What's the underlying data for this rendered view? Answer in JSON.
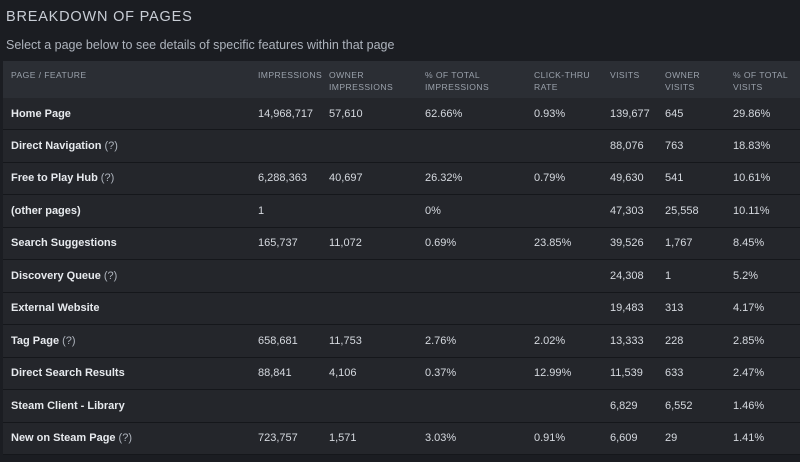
{
  "section_title": "BREAKDOWN OF PAGES",
  "subtitle": "Select a page below to see details of specific features within that page",
  "columns": [
    {
      "line1": "PAGE / FEATURE",
      "line2": ""
    },
    {
      "line1": "IMPRESSIONS",
      "line2": ""
    },
    {
      "line1": "OWNER",
      "line2": "IMPRESSIONS"
    },
    {
      "line1": "% OF TOTAL",
      "line2": "IMPRESSIONS"
    },
    {
      "line1": "CLICK-THRU",
      "line2": "RATE"
    },
    {
      "line1": "VISITS",
      "line2": ""
    },
    {
      "line1": "OWNER",
      "line2": "VISITS"
    },
    {
      "line1": "% OF TOTAL",
      "line2": "VISITS"
    }
  ],
  "rows": [
    {
      "page": "Home Page",
      "help": "",
      "impressions": "14,968,717",
      "owner_impressions": "57,610",
      "pct_impressions": "62.66%",
      "ctr": "0.93%",
      "visits": "139,677",
      "owner_visits": "645",
      "pct_visits": "29.86%"
    },
    {
      "page": "Direct Navigation",
      "help": "(?)",
      "impressions": "",
      "owner_impressions": "",
      "pct_impressions": "",
      "ctr": "",
      "visits": "88,076",
      "owner_visits": "763",
      "pct_visits": "18.83%"
    },
    {
      "page": "Free to Play Hub",
      "help": "(?)",
      "impressions": "6,288,363",
      "owner_impressions": "40,697",
      "pct_impressions": "26.32%",
      "ctr": "0.79%",
      "visits": "49,630",
      "owner_visits": "541",
      "pct_visits": "10.61%"
    },
    {
      "page": "(other pages)",
      "help": "",
      "impressions": "1",
      "owner_impressions": "",
      "pct_impressions": "0%",
      "ctr": "",
      "visits": "47,303",
      "owner_visits": "25,558",
      "pct_visits": "10.11%"
    },
    {
      "page": "Search Suggestions",
      "help": "",
      "impressions": "165,737",
      "owner_impressions": "11,072",
      "pct_impressions": "0.69%",
      "ctr": "23.85%",
      "visits": "39,526",
      "owner_visits": "1,767",
      "pct_visits": "8.45%"
    },
    {
      "page": "Discovery Queue",
      "help": "(?)",
      "impressions": "",
      "owner_impressions": "",
      "pct_impressions": "",
      "ctr": "",
      "visits": "24,308",
      "owner_visits": "1",
      "pct_visits": "5.2%"
    },
    {
      "page": "External Website",
      "help": "",
      "impressions": "",
      "owner_impressions": "",
      "pct_impressions": "",
      "ctr": "",
      "visits": "19,483",
      "owner_visits": "313",
      "pct_visits": "4.17%"
    },
    {
      "page": "Tag Page",
      "help": "(?)",
      "impressions": "658,681",
      "owner_impressions": "11,753",
      "pct_impressions": "2.76%",
      "ctr": "2.02%",
      "visits": "13,333",
      "owner_visits": "228",
      "pct_visits": "2.85%"
    },
    {
      "page": "Direct Search Results",
      "help": "",
      "impressions": "88,841",
      "owner_impressions": "4,106",
      "pct_impressions": "0.37%",
      "ctr": "12.99%",
      "visits": "11,539",
      "owner_visits": "633",
      "pct_visits": "2.47%"
    },
    {
      "page": "Steam Client - Library",
      "help": "",
      "impressions": "",
      "owner_impressions": "",
      "pct_impressions": "",
      "ctr": "",
      "visits": "6,829",
      "owner_visits": "6,552",
      "pct_visits": "1.46%"
    },
    {
      "page": "New on Steam Page",
      "help": "(?)",
      "impressions": "723,757",
      "owner_impressions": "1,571",
      "pct_impressions": "3.03%",
      "ctr": "0.91%",
      "visits": "6,609",
      "owner_visits": "29",
      "pct_visits": "1.41%"
    }
  ]
}
